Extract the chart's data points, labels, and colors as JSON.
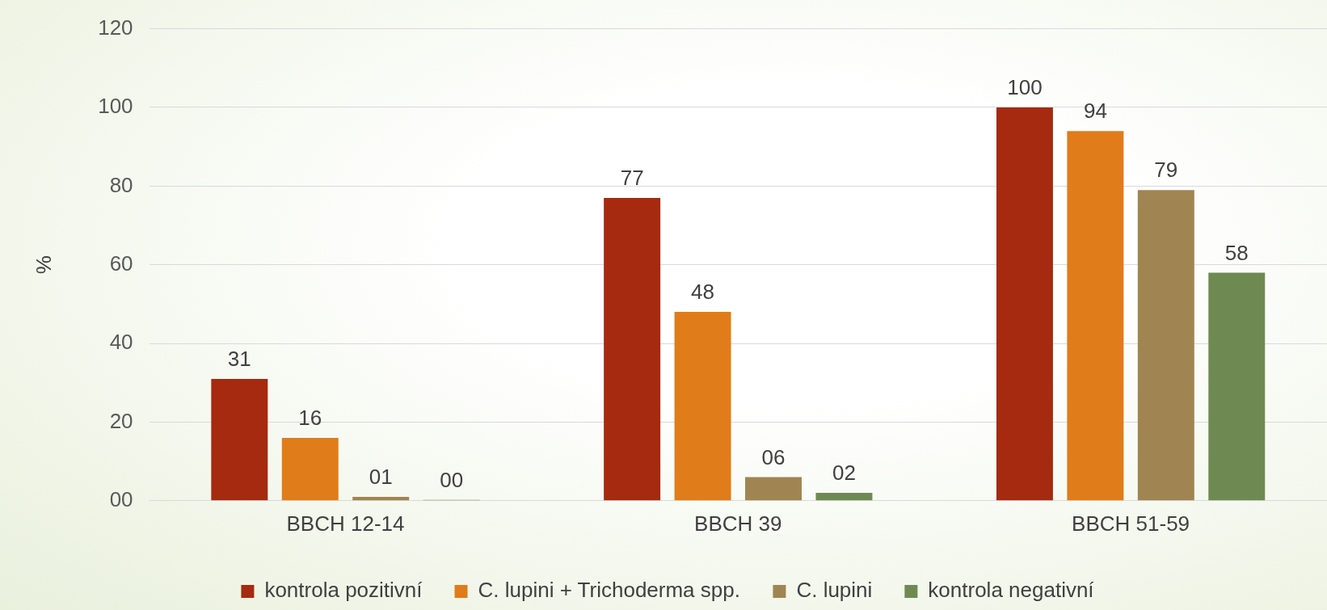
{
  "chart_data": {
    "type": "bar",
    "ylabel": "%",
    "categories": [
      "BBCH 12-14",
      "BBCH 39",
      "BBCH 51-59"
    ],
    "series": [
      {
        "name": "kontrola pozitivní",
        "color": "#a52a10",
        "values": [
          31,
          77,
          100
        ],
        "value_labels": [
          "31",
          "77",
          "100"
        ]
      },
      {
        "name": "C. lupini + Trichoderma spp.",
        "color": "#e07c1a",
        "values": [
          16,
          48,
          94
        ],
        "value_labels": [
          "16",
          "48",
          "94"
        ]
      },
      {
        "name": "C. lupini",
        "color": "#a08552",
        "values": [
          1,
          6,
          79
        ],
        "value_labels": [
          "01",
          "06",
          "79"
        ]
      },
      {
        "name": "kontrola negativní",
        "color": "#6e8a52",
        "values": [
          0,
          2,
          58
        ],
        "value_labels": [
          "00",
          "02",
          "58"
        ]
      }
    ],
    "ylim": [
      0,
      120
    ],
    "yticks": [
      {
        "value": 0,
        "label": "00"
      },
      20,
      40,
      60,
      80,
      100,
      120
    ],
    "grid": "y",
    "legend": "bottom"
  }
}
